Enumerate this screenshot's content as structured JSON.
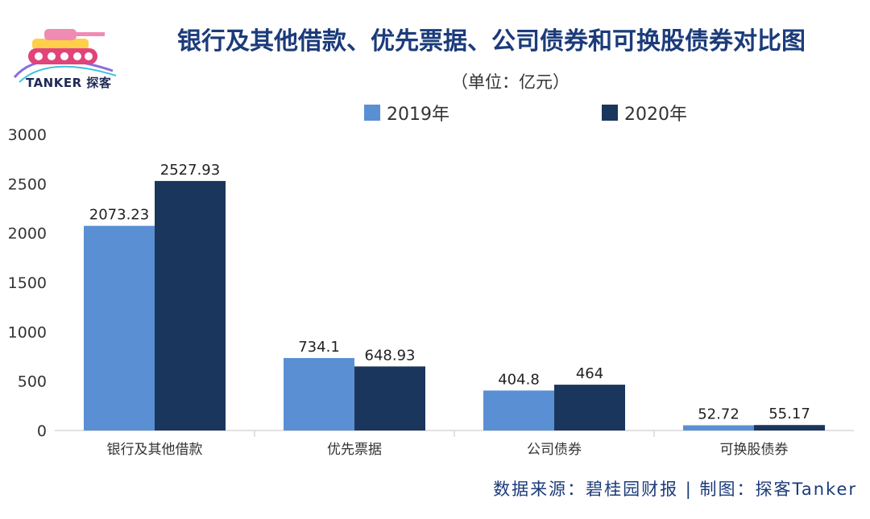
{
  "logo": {
    "text": "TANKER 探客"
  },
  "header": {
    "title": "银行及其他借款、优先票据、公司债券和可换股债券对比图",
    "unit": "（单位：亿元）"
  },
  "colors": {
    "series_2019": "#5a8fd4",
    "series_2020": "#1b365d",
    "title": "#1b3b7a"
  },
  "chart_data": {
    "type": "bar",
    "title": "银行及其他借款、优先票据、公司债券和可换股债券对比图",
    "unit": "（单位：亿元）",
    "categories": [
      "银行及其他借款",
      "优先票据",
      "公司债券",
      "可换股债券"
    ],
    "series": [
      {
        "name": "2019年",
        "values": [
          2073.23,
          734.1,
          404.8,
          52.72
        ]
      },
      {
        "name": "2020年",
        "values": [
          2527.93,
          648.93,
          464,
          55.17
        ]
      }
    ],
    "data_labels": [
      [
        "2073.23",
        "734.1",
        "404.8",
        "52.72"
      ],
      [
        "2527.93",
        "648.93",
        "464",
        "55.17"
      ]
    ],
    "ylim": [
      0,
      3000
    ],
    "yticks": [
      "0",
      "500",
      "1000",
      "1500",
      "2000",
      "2500",
      "3000"
    ],
    "legend_position": "top",
    "grid": false
  },
  "footer": {
    "text": "数据来源：碧桂园财报  |  制图：探客Tanker"
  }
}
